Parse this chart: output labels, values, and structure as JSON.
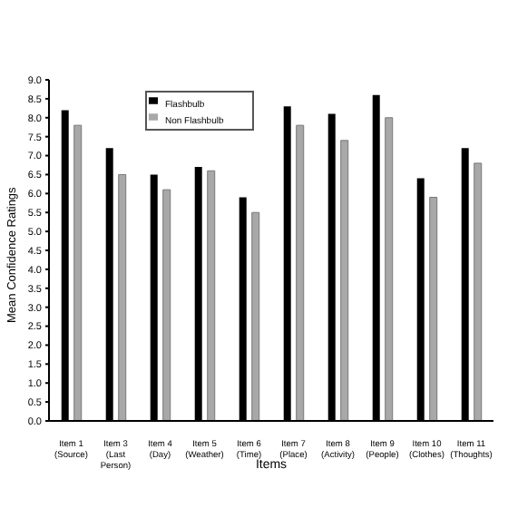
{
  "chart_data": {
    "type": "bar",
    "xlabel": "Items",
    "ylabel": "Mean Confidence Ratings",
    "categories": [
      "Item 1\n(Source)",
      "Item 3\n(Last\nPerson)",
      "Item 4\n(Day)",
      "Item 5\n(Weather)",
      "Item 6\n(Time)",
      "Item 7\n(Place)",
      "Item 8\n(Activity)",
      "Item 9\n(People)",
      "Item 10\n(Clothes)",
      "Item 11\n(Thoughts)"
    ],
    "series": [
      {
        "name": "Flashbulb",
        "color": "#000000",
        "values": [
          8.2,
          7.2,
          6.5,
          6.7,
          5.9,
          8.3,
          8.1,
          8.6,
          6.4,
          7.2
        ]
      },
      {
        "name": "Non Flashbulb",
        "color": "#a8a8a8",
        "values": [
          7.8,
          6.5,
          6.1,
          6.6,
          5.5,
          7.8,
          7.4,
          8.0,
          5.9,
          6.8
        ]
      }
    ],
    "ylim": [
      0,
      9
    ],
    "yticks": [
      {
        "value": 0,
        "label": "0.0"
      },
      {
        "value": 0.5,
        "label": "0.5"
      },
      {
        "value": 1,
        "label": "1.0"
      },
      {
        "value": 1.5,
        "label": "1.5"
      },
      {
        "value": 2,
        "label": "2.0"
      },
      {
        "value": 2.5,
        "label": "2.5"
      },
      {
        "value": 3,
        "label": "3.0"
      },
      {
        "value": 3.5,
        "label": "3.5"
      },
      {
        "value": 4,
        "label": "4.0"
      },
      {
        "value": 4.5,
        "label": "4.5"
      },
      {
        "value": 5,
        "label": "5.0"
      },
      {
        "value": 5.5,
        "label": "5.5"
      },
      {
        "value": 6,
        "label": "6.0"
      },
      {
        "value": 6.5,
        "label": "6.5"
      },
      {
        "value": 7,
        "label": "7.0"
      },
      {
        "value": 7.5,
        "label": "7.5"
      },
      {
        "value": 8,
        "label": "8.0"
      },
      {
        "value": 8.5,
        "label": "8.5"
      },
      {
        "value": 9,
        "label": "9.0"
      }
    ],
    "grid": false,
    "legend": "top"
  }
}
